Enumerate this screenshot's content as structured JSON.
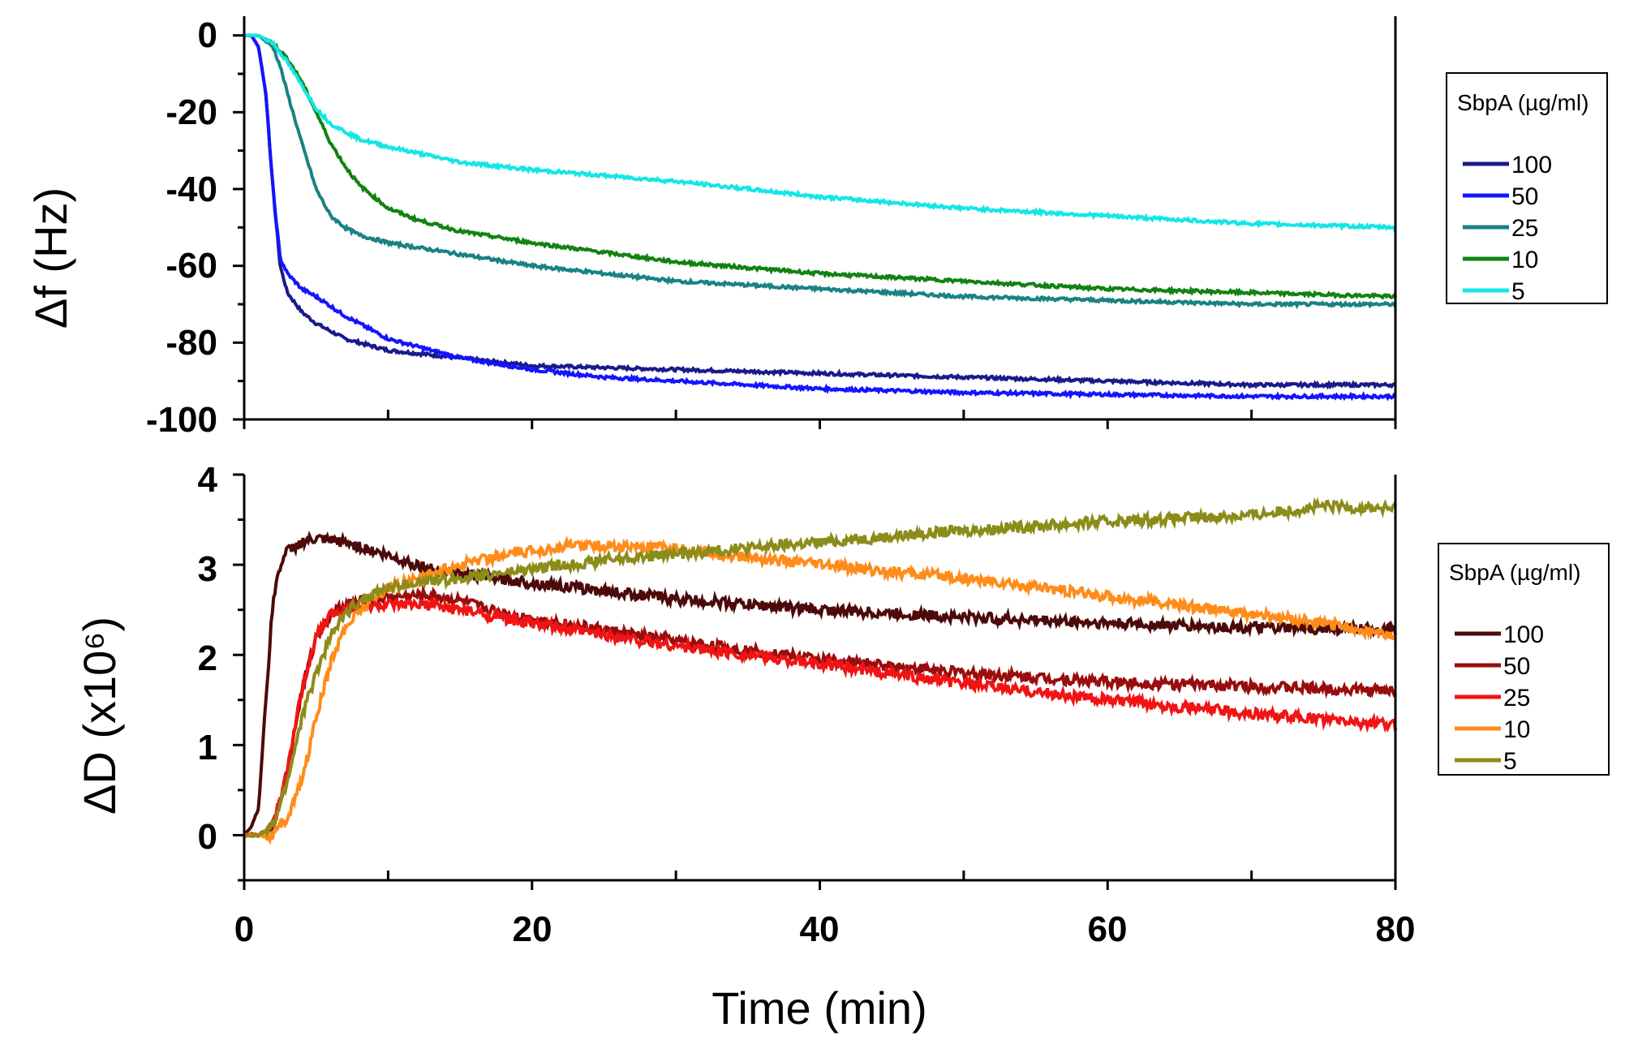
{
  "chart_data": [
    {
      "type": "line",
      "panel": "top",
      "ylabel": "Δf (Hz)",
      "xlabel": "",
      "xlim": [
        0,
        80
      ],
      "ylim": [
        -100,
        5
      ],
      "yticks": [
        0,
        -20,
        -40,
        -60,
        -80,
        -100
      ],
      "ytick_labels": [
        "0",
        "-20",
        "-40",
        "-60",
        "-80",
        "-100"
      ],
      "legend": {
        "title": "SbpA (µg/ml)",
        "position": "right"
      },
      "noise": 0.4,
      "series": [
        {
          "name": "100",
          "color": "#1a1a8c",
          "x": [
            0,
            0.5,
            1,
            1.5,
            2,
            2.5,
            3,
            4,
            5,
            7,
            10,
            15,
            20,
            30,
            40,
            50,
            60,
            70,
            80
          ],
          "y": [
            0,
            0,
            -3,
            -15,
            -40,
            -60,
            -67,
            -72,
            -75,
            -79,
            -82,
            -84,
            -86,
            -87,
            -88,
            -89,
            -90,
            -91,
            -91
          ]
        },
        {
          "name": "50",
          "color": "#1414ff",
          "x": [
            0,
            0.5,
            1,
            1.5,
            2,
            2.5,
            3,
            4,
            5,
            7,
            10,
            15,
            20,
            25,
            30,
            40,
            50,
            60,
            70,
            80
          ],
          "y": [
            0,
            0,
            -3,
            -15,
            -40,
            -58,
            -62,
            -66,
            -68,
            -73,
            -79,
            -84,
            -87,
            -89,
            -90,
            -92,
            -93,
            -93.5,
            -94,
            -94
          ]
        },
        {
          "name": "25",
          "color": "#1a8282",
          "x": [
            0,
            1,
            2,
            2.5,
            3,
            4,
            5,
            6,
            7,
            8,
            10,
            15,
            20,
            30,
            40,
            50,
            60,
            70,
            80
          ],
          "y": [
            0,
            0,
            -3,
            -8,
            -15,
            -28,
            -40,
            -47,
            -50,
            -52,
            -54,
            -57,
            -60,
            -64,
            -66,
            -68,
            -69,
            -70,
            -70
          ]
        },
        {
          "name": "10",
          "color": "#128212",
          "x": [
            0,
            1,
            2,
            3,
            4,
            5,
            6,
            7,
            8,
            10,
            12,
            15,
            20,
            30,
            40,
            50,
            60,
            70,
            80
          ],
          "y": [
            0,
            0,
            -2,
            -6,
            -12,
            -20,
            -28,
            -34,
            -39,
            -45,
            -48,
            -51,
            -54,
            -59,
            -62,
            -64,
            -66,
            -67,
            -68
          ]
        },
        {
          "name": "5",
          "color": "#14e6e6",
          "x": [
            0,
            1,
            2,
            3,
            4,
            5,
            6,
            8,
            10,
            15,
            20,
            30,
            40,
            50,
            60,
            70,
            80
          ],
          "y": [
            0,
            0,
            -2,
            -7,
            -13,
            -19,
            -23,
            -27,
            -29,
            -33,
            -35,
            -38,
            -42,
            -45,
            -47,
            -49,
            -50
          ]
        }
      ]
    },
    {
      "type": "line",
      "panel": "bottom",
      "ylabel": "ΔD (x10⁶)",
      "xlabel": "Time (min)",
      "xlim": [
        0,
        80
      ],
      "ylim": [
        -0.5,
        4
      ],
      "xticks": [
        0,
        20,
        40,
        60,
        80
      ],
      "xtick_labels": [
        "0",
        "20",
        "40",
        "60",
        "80"
      ],
      "yticks": [
        0,
        1,
        2,
        3,
        4
      ],
      "ytick_labels": [
        "0",
        "1",
        "2",
        "3",
        "4"
      ],
      "legend": {
        "title": "SbpA (µg/ml)",
        "position": "right"
      },
      "noise": 0.06,
      "series": [
        {
          "name": "100",
          "color": "#4d0a0a",
          "x": [
            0,
            0.5,
            1,
            1.5,
            2,
            2.5,
            3,
            4,
            5,
            7,
            9,
            11,
            13,
            15,
            20,
            30,
            40,
            50,
            60,
            70,
            80
          ],
          "y": [
            0,
            0.1,
            0.3,
            1.5,
            2.6,
            3.0,
            3.15,
            3.25,
            3.28,
            3.25,
            3.15,
            3.05,
            2.95,
            2.9,
            2.8,
            2.62,
            2.5,
            2.42,
            2.35,
            2.3,
            2.28
          ]
        },
        {
          "name": "50",
          "color": "#990d0d",
          "x": [
            0,
            1,
            2,
            3,
            4,
            5,
            6,
            7,
            9,
            11,
            13,
            15,
            17,
            20,
            30,
            40,
            50,
            60,
            70,
            80
          ],
          "y": [
            0,
            0,
            0.1,
            0.7,
            1.6,
            2.2,
            2.45,
            2.55,
            2.62,
            2.65,
            2.66,
            2.6,
            2.5,
            2.4,
            2.15,
            1.95,
            1.8,
            1.7,
            1.65,
            1.6
          ]
        },
        {
          "name": "25",
          "color": "#f21414",
          "x": [
            0,
            1,
            2,
            3,
            4,
            5,
            6,
            7,
            9,
            11,
            13,
            15,
            20,
            30,
            40,
            50,
            60,
            70,
            80
          ],
          "y": [
            0,
            0,
            0.1,
            0.7,
            1.6,
            2.2,
            2.45,
            2.52,
            2.55,
            2.55,
            2.55,
            2.5,
            2.35,
            2.1,
            1.9,
            1.68,
            1.5,
            1.35,
            1.22
          ]
        },
        {
          "name": "10",
          "color": "#ff8c1a",
          "x": [
            0,
            1,
            2,
            3,
            4,
            5,
            6,
            7,
            8,
            10,
            13,
            16,
            20,
            23,
            26,
            30,
            35,
            40,
            45,
            50,
            55,
            60,
            65,
            70,
            75,
            80
          ],
          "y": [
            0,
            0,
            0,
            0.2,
            0.6,
            1.3,
            1.9,
            2.3,
            2.5,
            2.75,
            2.9,
            3.05,
            3.15,
            3.22,
            3.2,
            3.18,
            3.08,
            3.0,
            2.92,
            2.85,
            2.75,
            2.65,
            2.55,
            2.45,
            2.35,
            2.2
          ]
        },
        {
          "name": "5",
          "color": "#8c8c1a",
          "x": [
            0,
            1,
            2,
            3,
            4,
            5,
            6,
            7,
            8,
            10,
            12,
            15,
            20,
            25,
            30,
            40,
            50,
            60,
            70,
            75,
            80
          ],
          "y": [
            0,
            0,
            0.1,
            0.6,
            1.3,
            1.8,
            2.2,
            2.45,
            2.6,
            2.75,
            2.8,
            2.85,
            2.95,
            3.05,
            3.12,
            3.25,
            3.38,
            3.48,
            3.55,
            3.65,
            3.62
          ]
        }
      ]
    }
  ]
}
